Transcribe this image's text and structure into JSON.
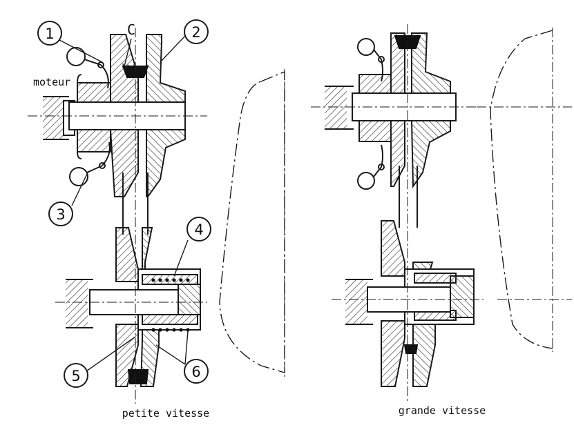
{
  "labels": {
    "motor": "moteur",
    "belt_marker": "C"
  },
  "callouts": [
    "1",
    "2",
    "3",
    "4",
    "5",
    "6"
  ],
  "captions": {
    "left": "petite vitesse",
    "right": "grande vitesse"
  },
  "colors": {
    "ink": "#1a1a1a",
    "belt": "#111111",
    "hatch": "#333333",
    "background": "#ffffff"
  }
}
